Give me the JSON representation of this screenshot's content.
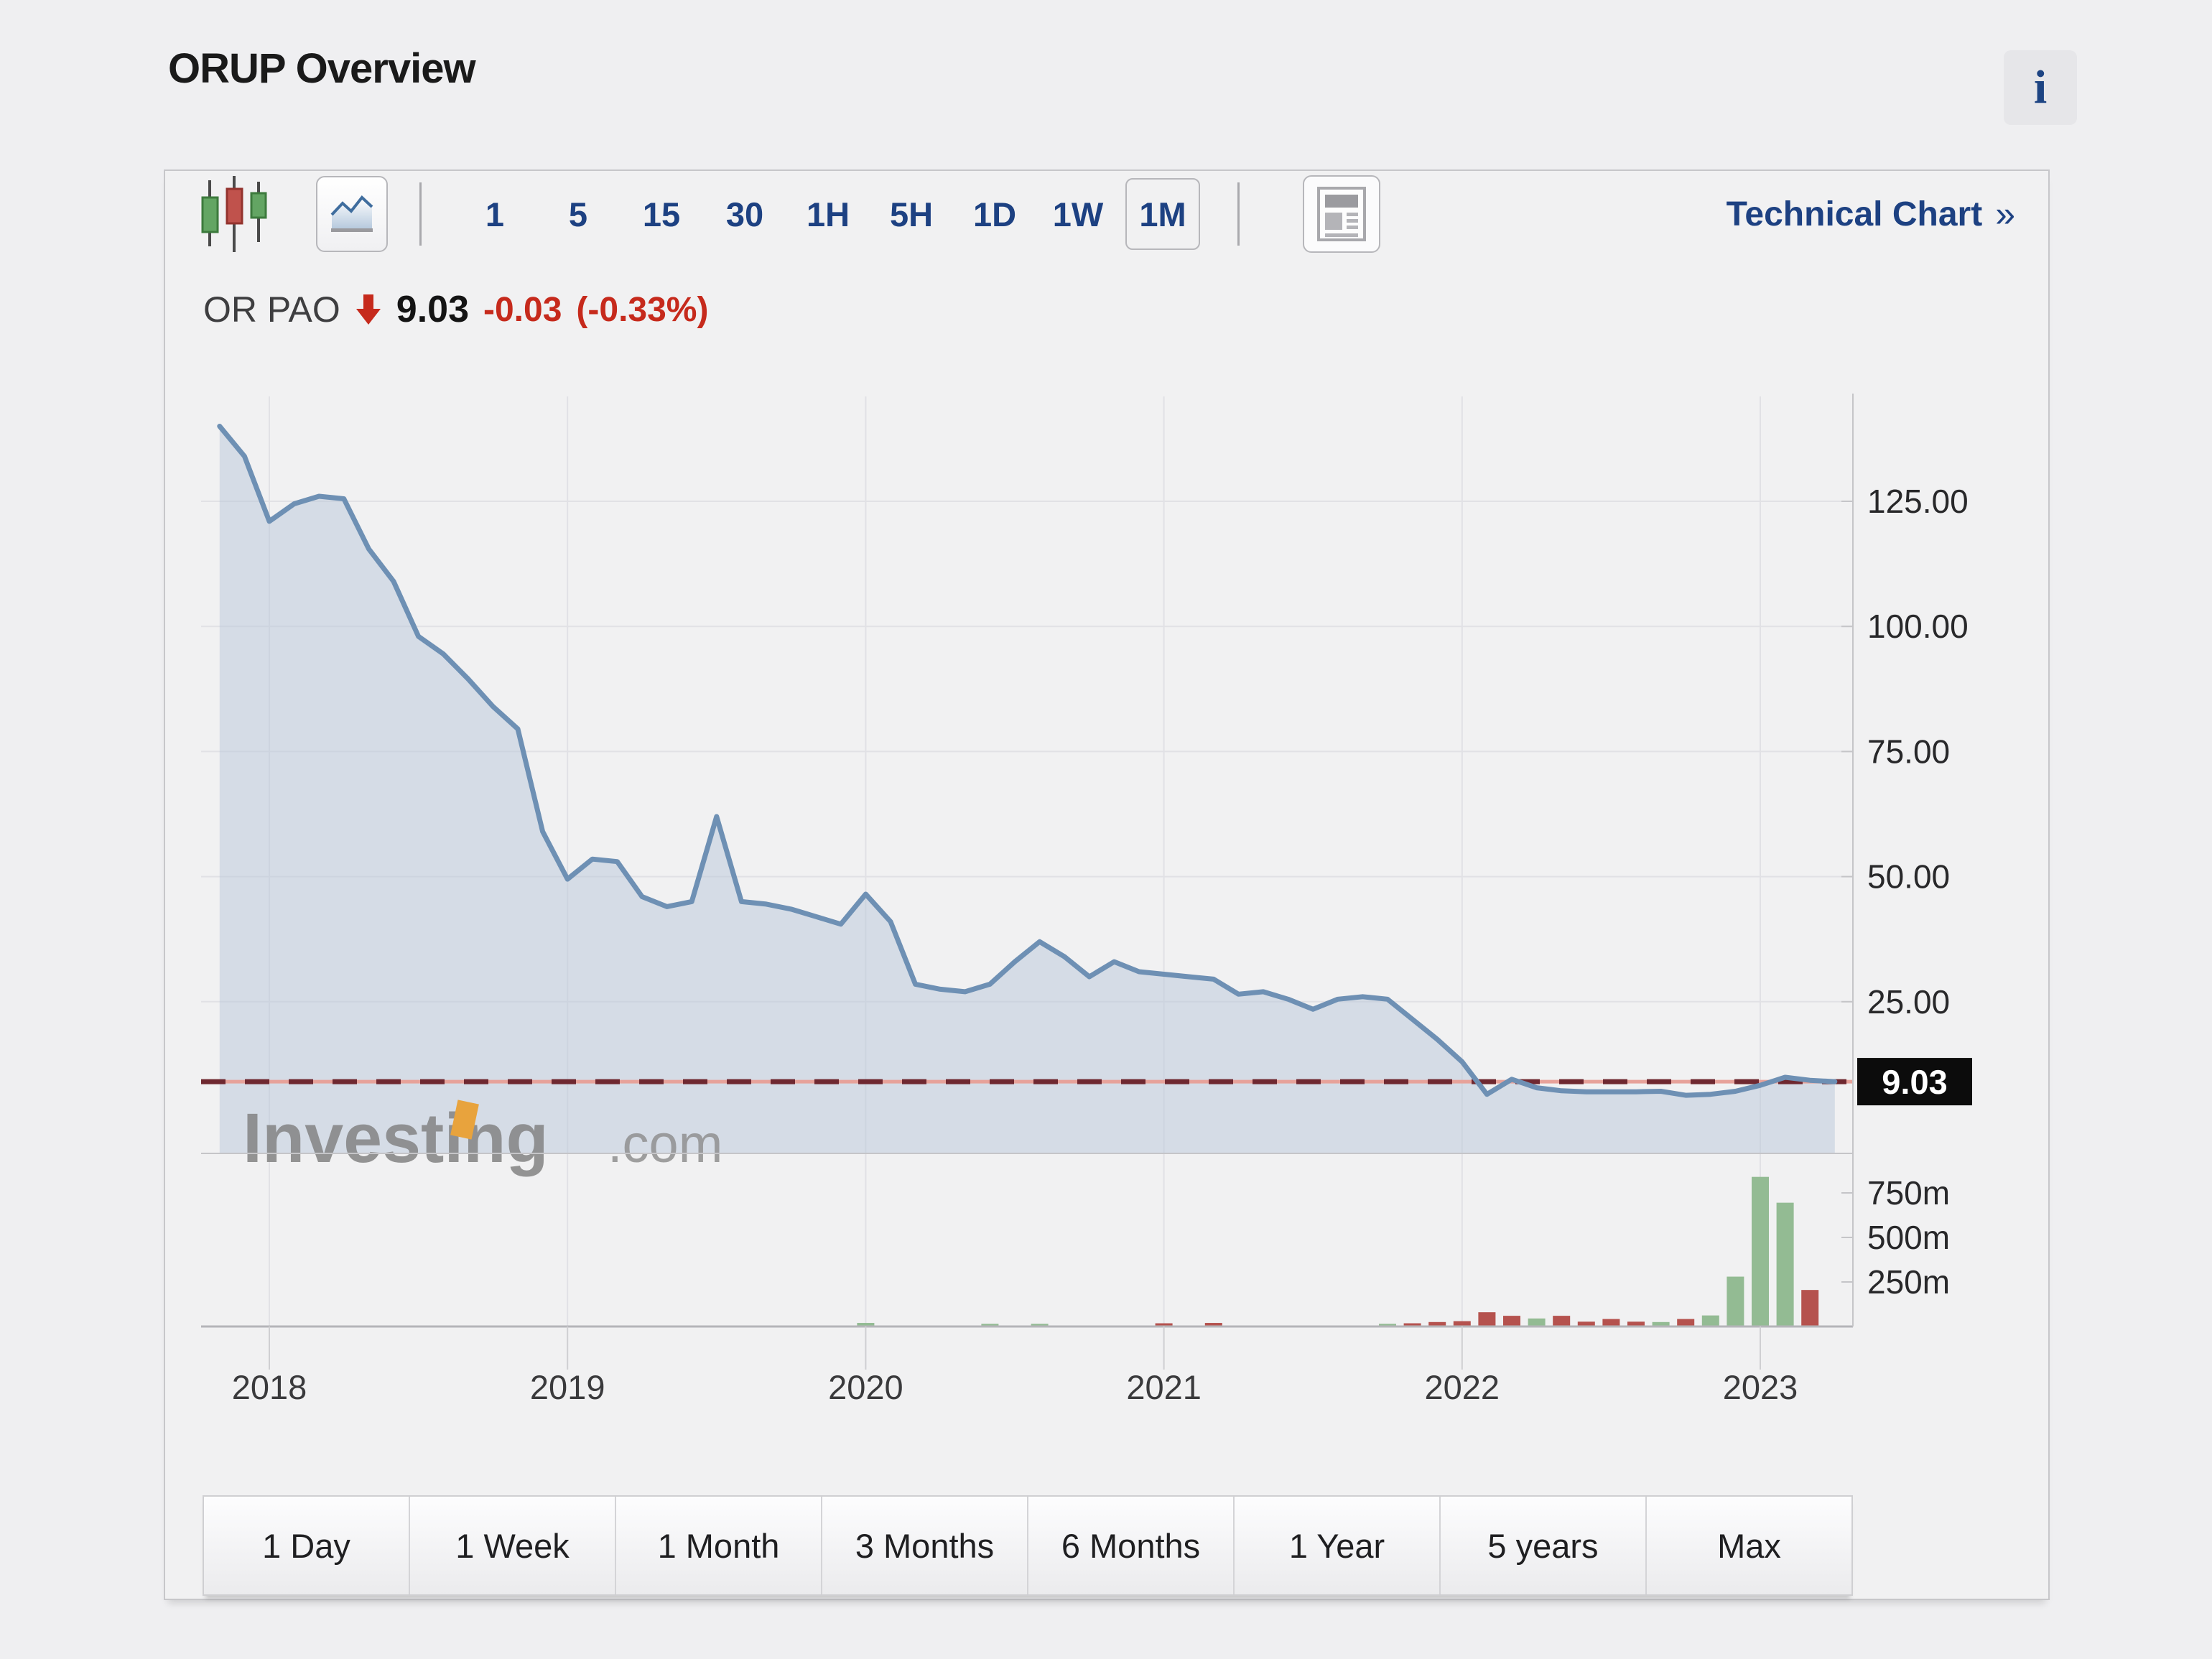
{
  "page": {
    "title": "ORUP Overview",
    "info_button": "i"
  },
  "toolbar": {
    "intervals": [
      "1",
      "5",
      "15",
      "30",
      "1H",
      "5H",
      "1D",
      "1W",
      "1M"
    ],
    "selected_interval": "1M",
    "technical_chart_label": "Technical Chart",
    "technical_chart_arrow": "»"
  },
  "quote": {
    "symbol": "OR PAO",
    "price": "9.03",
    "change": "-0.03",
    "change_percent": "(-0.33%)"
  },
  "watermark": {
    "text": "Investing",
    "suffix": ".com"
  },
  "range_buttons": [
    "1 Day",
    "1 Week",
    "1 Month",
    "3 Months",
    "6 Months",
    "1 Year",
    "5 years",
    "Max"
  ],
  "chart_data": {
    "type": "area",
    "title": "ORUP monthly price with volume",
    "x_tick_labels": [
      "2018",
      "2019",
      "2020",
      "2021",
      "2022",
      "2023"
    ],
    "price_axis": {
      "tick_labels": [
        "125.00",
        "100.00",
        "75.00",
        "50.00",
        "25.00"
      ],
      "ticks": [
        125,
        100,
        75,
        50,
        25
      ],
      "ylim": [
        -5,
        146
      ]
    },
    "volume_axis": {
      "tick_labels": [
        "750m",
        "500m",
        "250m"
      ],
      "ticks": [
        750,
        500,
        250
      ],
      "unit": "millions"
    },
    "current_price": 9.03,
    "current_price_label": "9.03",
    "grid": true,
    "legend": "none",
    "months": [
      "2017-11",
      "2017-12",
      "2018-01",
      "2018-02",
      "2018-03",
      "2018-04",
      "2018-05",
      "2018-06",
      "2018-07",
      "2018-08",
      "2018-09",
      "2018-10",
      "2018-11",
      "2018-12",
      "2019-01",
      "2019-02",
      "2019-03",
      "2019-04",
      "2019-05",
      "2019-06",
      "2019-07",
      "2019-08",
      "2019-09",
      "2019-10",
      "2019-11",
      "2019-12",
      "2020-01",
      "2020-02",
      "2020-03",
      "2020-04",
      "2020-05",
      "2020-06",
      "2020-07",
      "2020-08",
      "2020-09",
      "2020-10",
      "2020-11",
      "2020-12",
      "2021-01",
      "2021-02",
      "2021-03",
      "2021-04",
      "2021-05",
      "2021-06",
      "2021-07",
      "2021-08",
      "2021-09",
      "2021-10",
      "2021-11",
      "2021-12",
      "2022-01",
      "2022-02",
      "2022-03",
      "2022-04",
      "2022-05",
      "2022-06",
      "2022-07",
      "2022-08",
      "2022-09",
      "2022-10",
      "2022-11",
      "2022-12",
      "2023-01",
      "2023-02",
      "2023-03",
      "2023-04"
    ],
    "prices": [
      140,
      134,
      121,
      124.5,
      126,
      125.5,
      115.5,
      109,
      98,
      94.5,
      89.5,
      84,
      79.5,
      59,
      49.5,
      53.5,
      53,
      46,
      44,
      45,
      62,
      45,
      44.5,
      43.5,
      42,
      40.5,
      46.5,
      41,
      28.5,
      27.5,
      27,
      28.5,
      33,
      37,
      34,
      30,
      33,
      31,
      30.5,
      30,
      29.5,
      26.5,
      27,
      25.5,
      23.5,
      25.5,
      26,
      25.5,
      21.5,
      17.5,
      13,
      6.5,
      9.5,
      7.8,
      7.2,
      7,
      7,
      7,
      7.1,
      6.3,
      6.5,
      7.1,
      8.3,
      9.9,
      9.3,
      9.03
    ],
    "volumes_millions": [
      0,
      0,
      0,
      0,
      0,
      0,
      0,
      0,
      0,
      0,
      0,
      0,
      0,
      0,
      0,
      0,
      0,
      0,
      0,
      0,
      0,
      0,
      0,
      0,
      0,
      0,
      20,
      0,
      0,
      0,
      0,
      15,
      0,
      15,
      0,
      0,
      0,
      0,
      18,
      0,
      20,
      0,
      0,
      0,
      0,
      0,
      0,
      15,
      18,
      25,
      30,
      80,
      60,
      45,
      60,
      27,
      42,
      27,
      25,
      42,
      62,
      280,
      840,
      695,
      205,
      0
    ],
    "volume_colors": [
      "",
      "",
      "",
      "",
      "",
      "",
      "",
      "",
      "",
      "",
      "",
      "",
      "",
      "",
      "",
      "",
      "",
      "",
      "",
      "",
      "",
      "",
      "",
      "",
      "",
      "",
      "g",
      "",
      "",
      "",
      "",
      "g",
      "",
      "g",
      "",
      "",
      "",
      "",
      "r",
      "",
      "r",
      "",
      "",
      "",
      "",
      "",
      "",
      "g",
      "r",
      "r",
      "r",
      "r",
      "r",
      "g",
      "r",
      "r",
      "r",
      "r",
      "g",
      "r",
      "g",
      "g",
      "g",
      "g",
      "r",
      ""
    ],
    "colors": {
      "line": "#6e90b4",
      "area_fill": "#b9c8da",
      "dashed_base": "#e7a29a",
      "dashed_dark": "#6f2830",
      "volume_up": "#93bb93",
      "volume_down": "#b5524e",
      "badge_bg": "#0c0c0c",
      "badge_text": "#ffffff",
      "accent_navy": "#1d4182",
      "accent_red": "#c62a1c",
      "watermark_gray": "#828282",
      "watermark_orange": "#e8a33d",
      "grid": "#e1e1e5",
      "axis": "#c5c5c8"
    }
  }
}
